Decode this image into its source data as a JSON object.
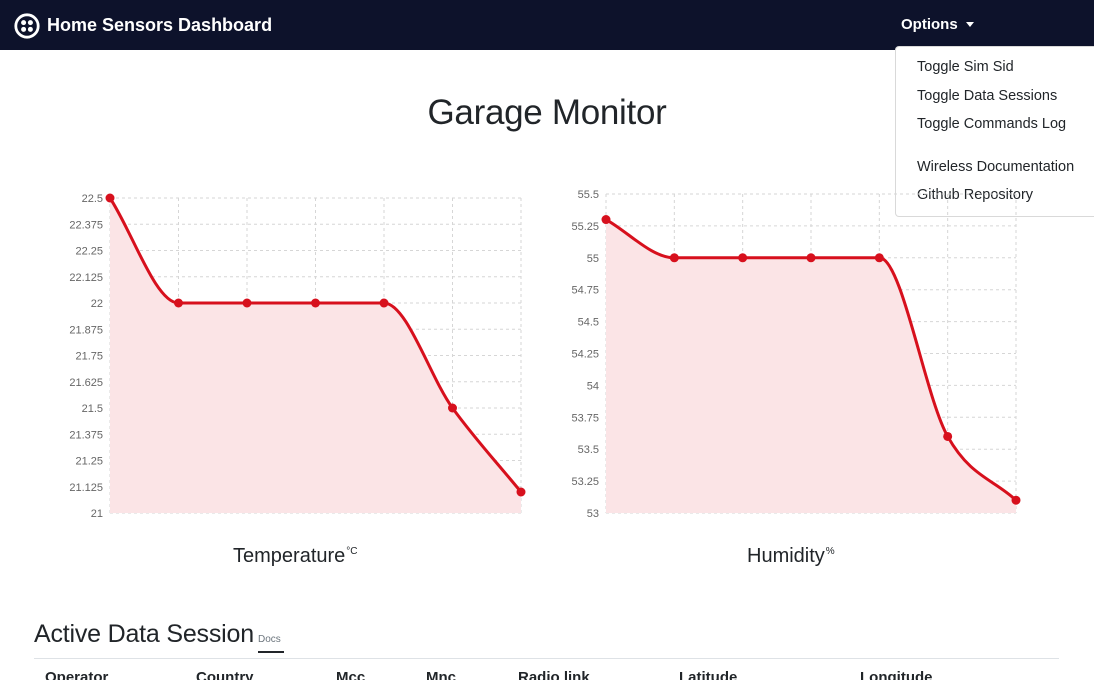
{
  "navbar": {
    "brand": "Home Sensors Dashboard",
    "brand_icon": "twilio-logo-icon",
    "options_label": "Options",
    "background": "#0d122b"
  },
  "dropdown": {
    "items": [
      "Toggle Sim Sid",
      "Toggle Data Sessions",
      "Toggle Commands Log",
      "Wireless Documentation",
      "Github Repository"
    ]
  },
  "page": {
    "title": "Garage Monitor"
  },
  "chart_data": [
    {
      "type": "line",
      "title": "Temperature",
      "unit": "°C",
      "x": [
        1,
        2,
        3,
        4,
        5,
        6,
        7
      ],
      "values": [
        22.5,
        22.0,
        22.0,
        22.0,
        22.0,
        21.5,
        21.1
      ],
      "ylim": [
        21,
        22.5
      ],
      "yticks": [
        "22.5",
        "22.375",
        "22.25",
        "22.125",
        "22",
        "21.875",
        "21.75",
        "21.625",
        "21.5",
        "21.375",
        "21.25",
        "21.125",
        "21"
      ],
      "grid": true,
      "line_color": "#d7101d",
      "fill_color": "#fbe4e6"
    },
    {
      "type": "line",
      "title": "Humidity",
      "unit": "%",
      "x": [
        1,
        2,
        3,
        4,
        5,
        6,
        7
      ],
      "values": [
        55.3,
        55.0,
        55.0,
        55.0,
        55.0,
        53.6,
        53.1
      ],
      "ylim": [
        53,
        55.5
      ],
      "yticks": [
        "55.5",
        "55.25",
        "55",
        "54.75",
        "54.5",
        "54.25",
        "54",
        "53.75",
        "53.5",
        "53.25",
        "53"
      ],
      "grid": true,
      "line_color": "#d7101d",
      "fill_color": "#fbe4e6"
    }
  ],
  "session": {
    "title": "Active Data Session",
    "docs_label": "Docs",
    "columns": [
      "Operator",
      "Country",
      "Mcc",
      "Mnc",
      "Radio link",
      "Latitude",
      "Longitude"
    ]
  }
}
